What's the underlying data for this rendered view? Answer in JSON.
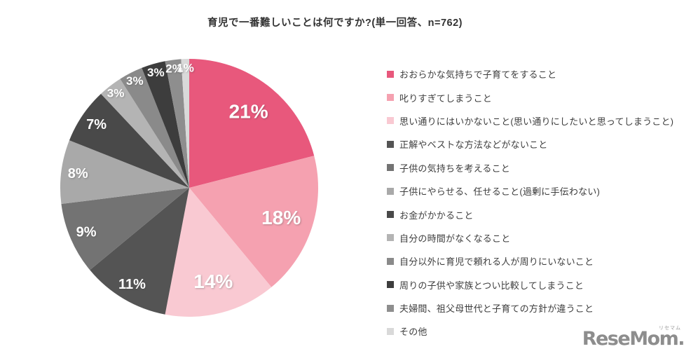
{
  "title": "育児で一番難しいことは何ですか?(単一回答、n=762)",
  "logo": {
    "text": "ReseMom.",
    "ruby": "リセマム"
  },
  "chart_data": {
    "type": "pie",
    "title": "育児で一番難しいことは何ですか?(単一回答、n=762)",
    "sample_note": "単一回答、n=762",
    "n": 762,
    "start_angle_deg": 0,
    "direction": "clockwise",
    "legend_position": "right",
    "series": [
      {
        "label": "おおらかな気持ちで子育てをすること",
        "value": 21,
        "display": "21%",
        "color": "#E8587C"
      },
      {
        "label": "叱りすぎてしまうこと",
        "value": 18,
        "display": "18%",
        "color": "#F5A1B0"
      },
      {
        "label": "思い通りにはいかないこと(思い通りにしたいと思ってしまうこと)",
        "value": 14,
        "display": "14%",
        "color": "#F9C9D2"
      },
      {
        "label": "正解やベストな方法などがないこと",
        "value": 11,
        "display": "11%",
        "color": "#545454"
      },
      {
        "label": "子供の気持ちを考えること",
        "value": 9,
        "display": "9%",
        "color": "#737373"
      },
      {
        "label": "子供にやらせる、任せること(過剰に手伝わない)",
        "value": 8,
        "display": "8%",
        "color": "#A9A9A9"
      },
      {
        "label": "お金がかかること",
        "value": 7,
        "display": "7%",
        "color": "#494949"
      },
      {
        "label": "自分の時間がなくなること",
        "value": 3,
        "display": "3%",
        "color": "#B4B4B4"
      },
      {
        "label": "自分以外に育児で頼れる人が周りにいないこと",
        "value": 3,
        "display": "3%",
        "color": "#8A8A8A"
      },
      {
        "label": "周りの子供や家族とつい比較してしまうこと",
        "value": 3,
        "display": "3%",
        "color": "#3D3D3D"
      },
      {
        "label": "夫婦間、祖父母世代と子育ての方針が違うこと",
        "value": 2,
        "display": "2%",
        "color": "#8E8E8E"
      },
      {
        "label": "その他",
        "value": 1,
        "display": "1%",
        "color": "#D9D9D9"
      }
    ]
  }
}
